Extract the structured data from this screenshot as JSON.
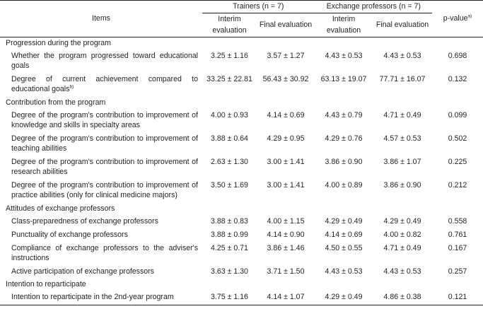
{
  "header": {
    "items": "Items",
    "trainers": "Trainers (n = 7)",
    "exchange": "Exchange professors (n = 7)",
    "pvalue": "p-value",
    "pvalue_sup": "a)",
    "interim": "Interim evaluation",
    "final": "Final evaluation"
  },
  "sections": [
    {
      "title": "Progression during the program",
      "rows": [
        {
          "label": "Whether the program progressed toward educational goals",
          "sup": "",
          "t_interim": "3.25 ± 1.16",
          "t_final": "3.57 ± 1.27",
          "e_interim": "4.43 ± 0.53",
          "e_final": "4.43 ± 0.53",
          "p": "0.698"
        },
        {
          "label": "Degree of current achievement compared to educational goals",
          "sup": "b)",
          "t_interim": "33.25 ± 22.81",
          "t_final": "56.43 ± 30.92",
          "e_interim": "63.13 ± 19.07",
          "e_final": "77.71 ± 16.07",
          "p": "0.132"
        }
      ]
    },
    {
      "title": "Contribution from the program",
      "rows": [
        {
          "label": "Degree of the program's contribution to improvement of knowledge and skills in specialty areas",
          "sup": "",
          "t_interim": "4.00 ± 0.93",
          "t_final": "4.14 ± 0.69",
          "e_interim": "4.43 ± 0.79",
          "e_final": "4.71 ± 0.49",
          "p": "0.099"
        },
        {
          "label": "Degree of the program's contribution to improvement of teaching abilities",
          "sup": "",
          "t_interim": "3.88 ± 0.64",
          "t_final": "4.29 ± 0.95",
          "e_interim": "4.29 ± 0.76",
          "e_final": "4.57 ± 0.53",
          "p": "0.502"
        },
        {
          "label": "Degree of the program's contribution to improvement of research abilities",
          "sup": "",
          "t_interim": "2.63 ± 1.30",
          "t_final": "3.00 ± 1.41",
          "e_interim": "3.86 ± 0.90",
          "e_final": "3.86 ± 1.07",
          "p": "0.225"
        },
        {
          "label": "Degree of the program's contribution to improvement of practice abilities (only for clinical medicine majors)",
          "sup": "",
          "t_interim": "3.50 ± 1.69",
          "t_final": "3.00 ± 1.41",
          "e_interim": "4.00 ± 0.89",
          "e_final": "3.86 ± 0.90",
          "p": "0.212"
        }
      ]
    },
    {
      "title": "Attitudes of exchange professors",
      "rows": [
        {
          "label": "Class-preparedness of exchange professors",
          "sup": "",
          "t_interim": "3.88 ± 0.83",
          "t_final": "4.00 ± 1.15",
          "e_interim": "4.29 ± 0.49",
          "e_final": "4.29 ± 0.49",
          "p": "0.558"
        },
        {
          "label": "Punctuality of exchange professors",
          "sup": "",
          "t_interim": "3.88 ± 0.99",
          "t_final": "4.14 ± 0.90",
          "e_interim": "4.14 ± 0.69",
          "e_final": "4.00 ± 0.82",
          "p": "0.761"
        },
        {
          "label": "Compliance of exchange professors to the adviser's instructions",
          "sup": "",
          "t_interim": "4.25 ± 0.71",
          "t_final": "3.86 ± 1.46",
          "e_interim": "4.50 ± 0.55",
          "e_final": "4.71 ± 0.49",
          "p": "0.167"
        },
        {
          "label": "Active participation of exchange professors",
          "sup": "",
          "t_interim": "3.63 ± 1.30",
          "t_final": "3.71 ± 1.50",
          "e_interim": "4.43 ± 0.53",
          "e_final": "4.43 ± 0.53",
          "p": "0.257"
        }
      ]
    },
    {
      "title": "Intention to reparticipate",
      "rows": [
        {
          "label": "Intention to reparticipate in the 2nd-year program",
          "sup": "",
          "t_interim": "3.75 ± 1.16",
          "t_final": "4.14 ± 1.07",
          "e_interim": "4.29 ± 0.49",
          "e_final": "4.86 ± 0.38",
          "p": "0.121"
        }
      ]
    }
  ]
}
